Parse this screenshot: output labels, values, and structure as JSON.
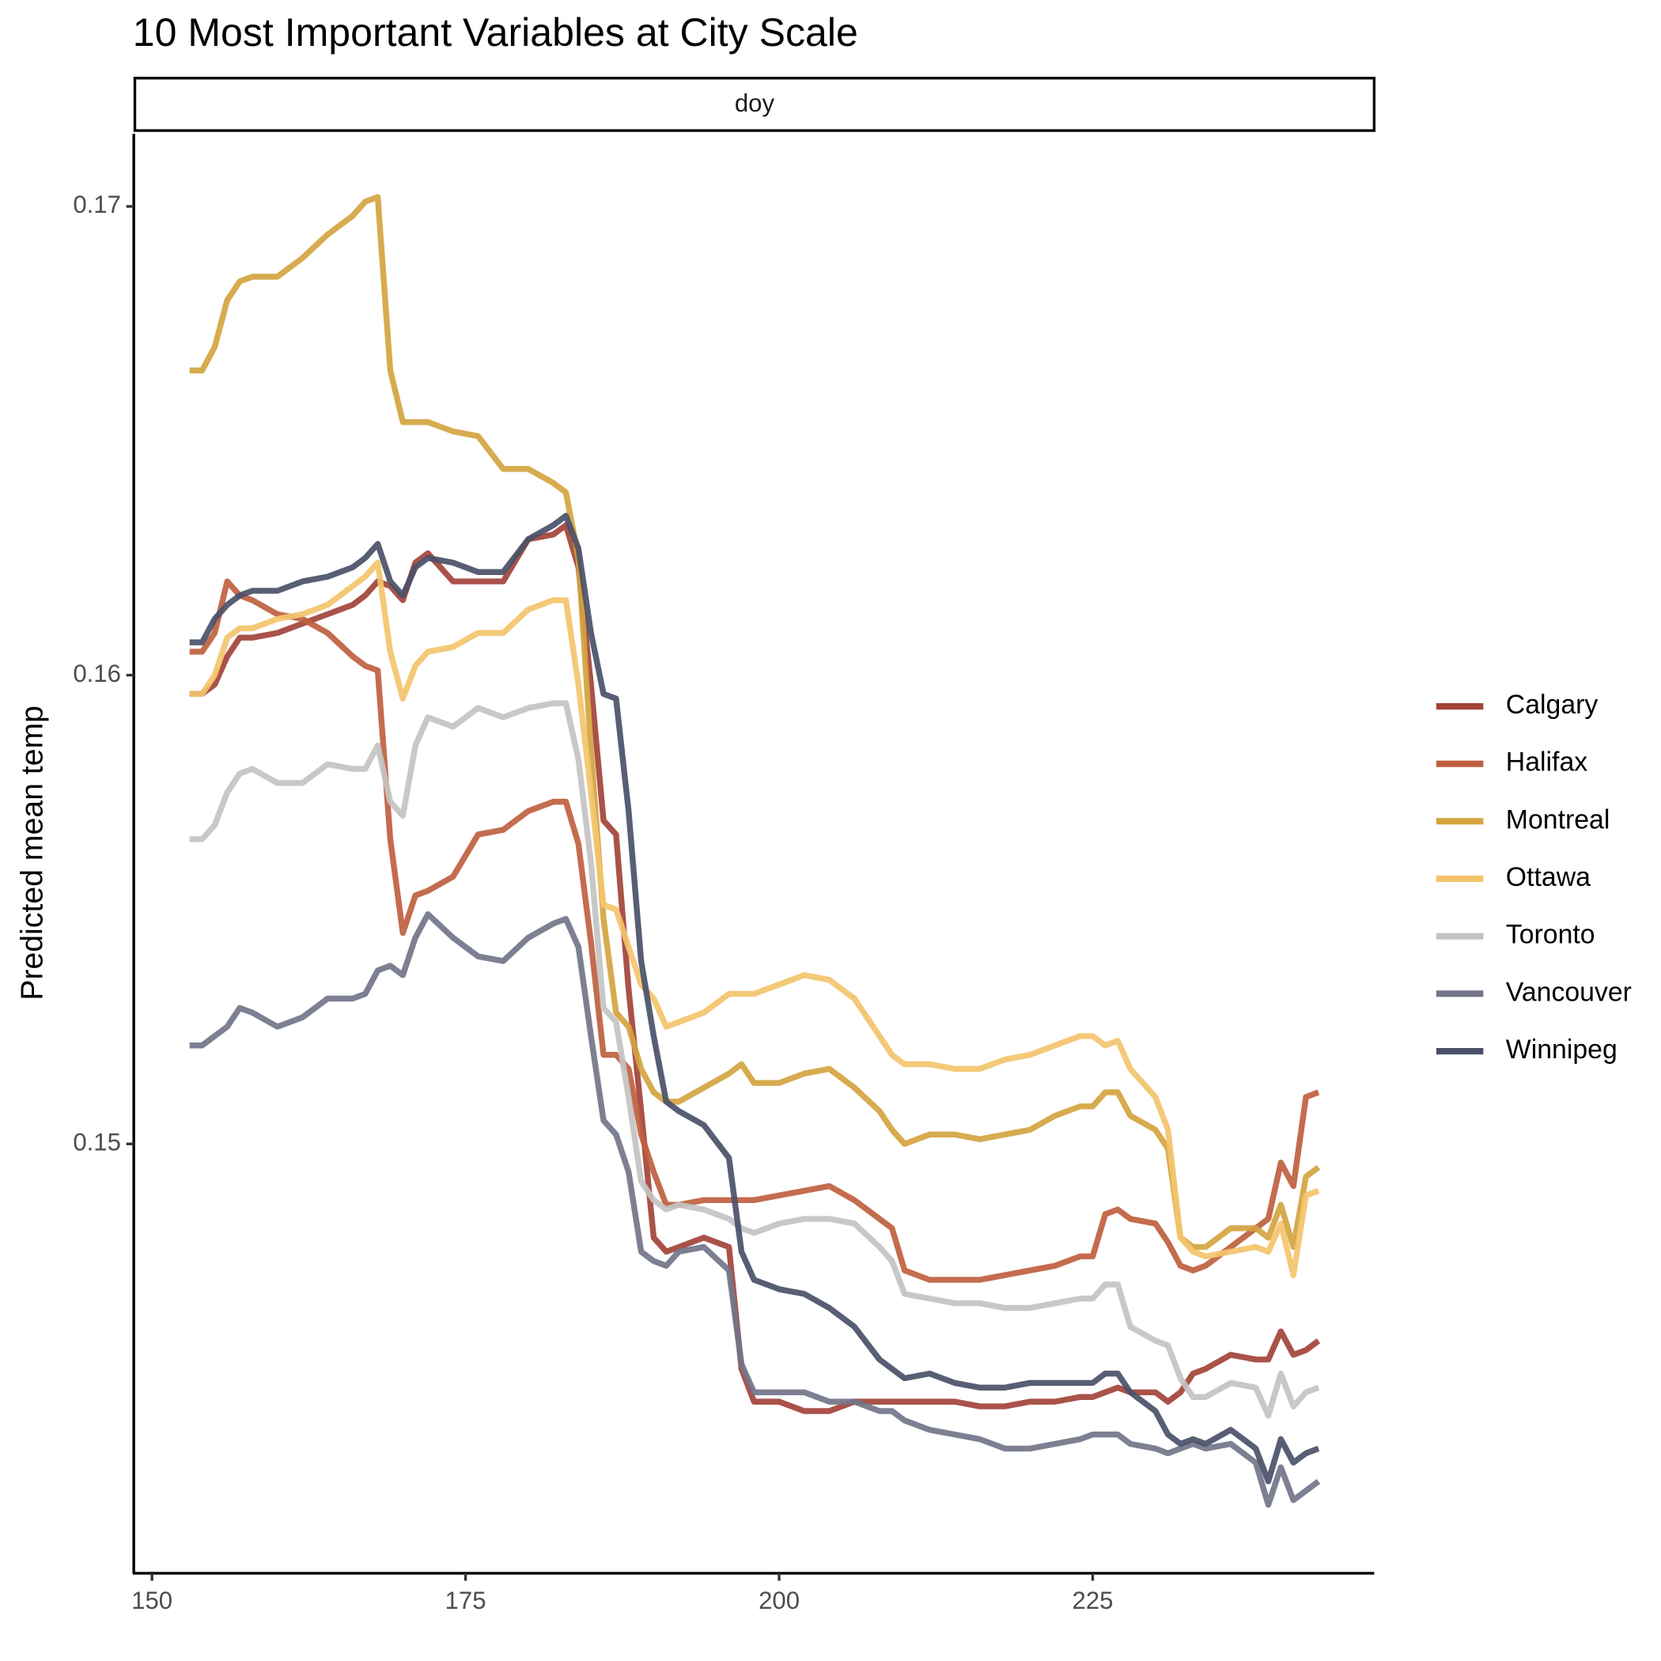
{
  "chart_data": {
    "type": "line",
    "title": "10 Most Important Variables at City Scale",
    "facet_label": "doy",
    "ylabel": "Predicted mean temp",
    "xlim": [
      148.55,
      247.44
    ],
    "ylim": [
      0.14084,
      0.17155
    ],
    "xticks": [
      150,
      175,
      200,
      225
    ],
    "yticks": [
      0.15,
      0.16,
      0.17
    ],
    "legend": "right",
    "x": [
      153,
      154,
      155,
      156,
      157,
      158,
      160,
      162,
      164,
      166,
      167,
      168,
      169,
      170,
      171,
      172,
      174,
      176,
      178,
      180,
      182,
      183,
      184,
      185,
      186,
      187,
      188,
      189,
      190,
      191,
      192,
      194,
      196,
      197,
      198,
      200,
      202,
      204,
      206,
      208,
      209,
      210,
      212,
      214,
      216,
      218,
      220,
      222,
      224,
      225,
      226,
      227,
      228,
      230,
      231,
      232,
      233,
      234,
      236,
      238,
      239,
      240,
      241,
      242,
      243
    ],
    "series": [
      {
        "name": "Calgary",
        "color": "#a3433a",
        "values": [
          0.1596,
          0.1596,
          0.1598,
          0.1604,
          0.1608,
          0.1608,
          0.1609,
          0.1611,
          0.1613,
          0.1615,
          0.1617,
          0.162,
          0.1619,
          0.1616,
          0.1624,
          0.1626,
          0.162,
          0.162,
          0.162,
          0.1629,
          0.163,
          0.1632,
          0.1623,
          0.1598,
          0.1569,
          0.1566,
          0.1533,
          0.1507,
          0.148,
          0.1477,
          0.1478,
          0.148,
          0.1478,
          0.1452,
          0.1445,
          0.1445,
          0.1443,
          0.1443,
          0.1445,
          0.1445,
          0.1445,
          0.1445,
          0.1445,
          0.1445,
          0.1444,
          0.1444,
          0.1445,
          0.1445,
          0.1446,
          0.1446,
          0.1447,
          0.1448,
          0.1447,
          0.1447,
          0.1445,
          0.1447,
          0.1451,
          0.1452,
          0.1455,
          0.1454,
          0.1454,
          0.146,
          0.1455,
          0.1456,
          0.1458
        ]
      },
      {
        "name": "Halifax",
        "color": "#bf5f3f",
        "values": [
          0.1605,
          0.1605,
          0.1609,
          0.162,
          0.1617,
          0.1616,
          0.1613,
          0.1612,
          0.1609,
          0.1604,
          0.1602,
          0.1601,
          0.1565,
          0.1545,
          0.1553,
          0.1554,
          0.1557,
          0.1566,
          0.1567,
          0.1571,
          0.1573,
          0.1573,
          0.1564,
          0.1543,
          0.1519,
          0.1519,
          0.1516,
          0.1502,
          0.1494,
          0.1487,
          0.1487,
          0.1488,
          0.1488,
          0.1488,
          0.1488,
          0.1489,
          0.149,
          0.1491,
          0.1488,
          0.1484,
          0.1482,
          0.1473,
          0.1471,
          0.1471,
          0.1471,
          0.1472,
          0.1473,
          0.1474,
          0.1476,
          0.1476,
          0.1485,
          0.1486,
          0.1484,
          0.1483,
          0.1479,
          0.1474,
          0.1473,
          0.1474,
          0.1478,
          0.1482,
          0.1484,
          0.1496,
          0.1491,
          0.151,
          0.1511
        ]
      },
      {
        "name": "Montreal",
        "color": "#d4a440",
        "values": [
          0.1665,
          0.1665,
          0.167,
          0.168,
          0.1684,
          0.1685,
          0.1685,
          0.1689,
          0.1694,
          0.1698,
          0.1701,
          0.1702,
          0.1665,
          0.1654,
          0.1654,
          0.1654,
          0.1652,
          0.1651,
          0.1644,
          0.1644,
          0.1641,
          0.1639,
          0.1625,
          0.1584,
          0.1548,
          0.1528,
          0.1525,
          0.1516,
          0.1511,
          0.1509,
          0.1509,
          0.1512,
          0.1515,
          0.1517,
          0.1513,
          0.1513,
          0.1515,
          0.1516,
          0.1512,
          0.1507,
          0.1503,
          0.15,
          0.1502,
          0.1502,
          0.1501,
          0.1502,
          0.1503,
          0.1506,
          0.1508,
          0.1508,
          0.1511,
          0.1511,
          0.1506,
          0.1503,
          0.1499,
          0.148,
          0.1478,
          0.1478,
          0.1482,
          0.1482,
          0.148,
          0.1487,
          0.1478,
          0.1493,
          0.1495
        ]
      },
      {
        "name": "Ottawa",
        "color": "#f3c46c",
        "values": [
          0.1596,
          0.1596,
          0.16,
          0.1608,
          0.161,
          0.161,
          0.1612,
          0.1613,
          0.1615,
          0.1619,
          0.1621,
          0.1624,
          0.1605,
          0.1595,
          0.1602,
          0.1605,
          0.1606,
          0.1609,
          0.1609,
          0.1614,
          0.1616,
          0.1616,
          0.1598,
          0.1575,
          0.1551,
          0.155,
          0.1542,
          0.1534,
          0.1531,
          0.1525,
          0.1526,
          0.1528,
          0.1532,
          0.1532,
          0.1532,
          0.1534,
          0.1536,
          0.1535,
          0.1531,
          0.1523,
          0.1519,
          0.1517,
          0.1517,
          0.1516,
          0.1516,
          0.1518,
          0.1519,
          0.1521,
          0.1523,
          0.1523,
          0.1521,
          0.1522,
          0.1516,
          0.151,
          0.1503,
          0.148,
          0.1477,
          0.1476,
          0.1477,
          0.1478,
          0.1477,
          0.1483,
          0.1472,
          0.1489,
          0.149
        ]
      },
      {
        "name": "Toronto",
        "color": "#c3c3c3",
        "values": [
          0.1565,
          0.1565,
          0.1568,
          0.1575,
          0.1579,
          0.158,
          0.1577,
          0.1577,
          0.1581,
          0.158,
          0.158,
          0.1585,
          0.1573,
          0.157,
          0.1585,
          0.1591,
          0.1589,
          0.1593,
          0.1591,
          0.1593,
          0.1594,
          0.1594,
          0.1582,
          0.156,
          0.1529,
          0.1526,
          0.151,
          0.1492,
          0.1488,
          0.1486,
          0.1487,
          0.1486,
          0.1484,
          0.1482,
          0.1481,
          0.1483,
          0.1484,
          0.1484,
          0.1483,
          0.1478,
          0.1475,
          0.1468,
          0.1467,
          0.1466,
          0.1466,
          0.1465,
          0.1465,
          0.1466,
          0.1467,
          0.1467,
          0.147,
          0.147,
          0.1461,
          0.1458,
          0.1457,
          0.145,
          0.1446,
          0.1446,
          0.1449,
          0.1448,
          0.1442,
          0.1451,
          0.1444,
          0.1447,
          0.1448
        ]
      },
      {
        "name": "Vancouver",
        "color": "#727589",
        "values": [
          0.1521,
          0.1521,
          0.1523,
          0.1525,
          0.1529,
          0.1528,
          0.1525,
          0.1527,
          0.1531,
          0.1531,
          0.1532,
          0.1537,
          0.1538,
          0.1536,
          0.1544,
          0.1549,
          0.1544,
          0.154,
          0.1539,
          0.1544,
          0.1547,
          0.1548,
          0.1542,
          0.1523,
          0.1505,
          0.1502,
          0.1494,
          0.1477,
          0.1475,
          0.1474,
          0.1477,
          0.1478,
          0.1473,
          0.1453,
          0.1447,
          0.1447,
          0.1447,
          0.1445,
          0.1445,
          0.1443,
          0.1443,
          0.1441,
          0.1439,
          0.1438,
          0.1437,
          0.1435,
          0.1435,
          0.1436,
          0.1437,
          0.1438,
          0.1438,
          0.1438,
          0.1436,
          0.1435,
          0.1434,
          0.1435,
          0.1436,
          0.1435,
          0.1436,
          0.1432,
          0.1423,
          0.1431,
          0.1424,
          0.1426,
          0.1428
        ]
      },
      {
        "name": "Winnipeg",
        "color": "#4a5068",
        "values": [
          0.1607,
          0.1607,
          0.1612,
          0.1615,
          0.1617,
          0.1618,
          0.1618,
          0.162,
          0.1621,
          0.1623,
          0.1625,
          0.1628,
          0.162,
          0.1617,
          0.1623,
          0.1625,
          0.1624,
          0.1622,
          0.1622,
          0.1629,
          0.1632,
          0.1634,
          0.1627,
          0.1609,
          0.1596,
          0.1595,
          0.1571,
          0.1539,
          0.1523,
          0.1509,
          0.1507,
          0.1504,
          0.1497,
          0.1477,
          0.1471,
          0.1469,
          0.1468,
          0.1465,
          0.1461,
          0.1454,
          0.1452,
          0.145,
          0.1451,
          0.1449,
          0.1448,
          0.1448,
          0.1449,
          0.1449,
          0.1449,
          0.1449,
          0.1451,
          0.1451,
          0.1447,
          0.1443,
          0.1438,
          0.1436,
          0.1437,
          0.1436,
          0.1439,
          0.1435,
          0.1428,
          0.1437,
          0.1432,
          0.1434,
          0.1435
        ]
      }
    ]
  }
}
